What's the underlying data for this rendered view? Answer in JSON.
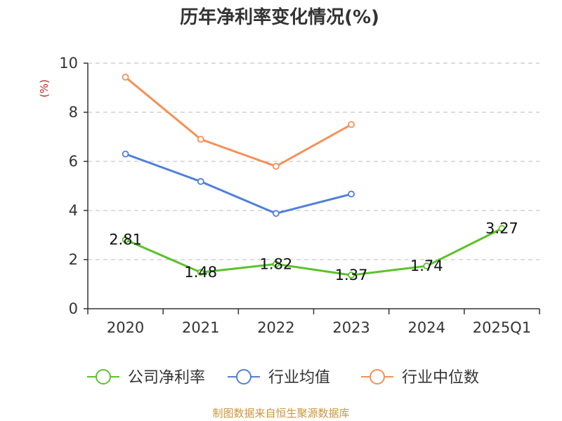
{
  "chart_data": {
    "type": "line",
    "title": "历年净利率变化情况(%)",
    "ylabel": "(%)",
    "categories": [
      "2020",
      "2021",
      "2022",
      "2023",
      "2024",
      "2025Q1"
    ],
    "ylim": [
      0,
      10
    ],
    "yticks": [
      0,
      2,
      4,
      6,
      8,
      10
    ],
    "grid": true,
    "legend_position": "bottom",
    "series": [
      {
        "name": "公司净利率",
        "color": "#5cc22c",
        "show_labels": true,
        "values": [
          2.81,
          1.48,
          1.82,
          1.37,
          1.74,
          3.27
        ],
        "labels": [
          "2.81",
          "1.48",
          "1.82",
          "1.37",
          "1.74",
          "3.27"
        ]
      },
      {
        "name": "行业均值",
        "color": "#4f7fdb",
        "show_labels": false,
        "values": [
          6.3,
          5.18,
          3.88,
          4.67,
          null,
          null
        ]
      },
      {
        "name": "行业中位数",
        "color": "#f78f55",
        "show_labels": false,
        "values": [
          9.43,
          6.9,
          5.8,
          7.5,
          null,
          null
        ]
      }
    ]
  },
  "source": {
    "text": "制图数据来自恒生聚源数据库",
    "color": "#c8963c"
  },
  "colors": {
    "ylabel": "#cc2222",
    "axis": "#333333",
    "grid": "#bbbbbb"
  }
}
